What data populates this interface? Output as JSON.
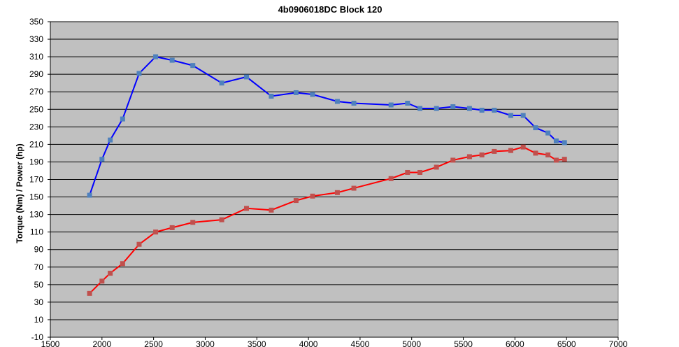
{
  "chart_data": {
    "type": "line",
    "title": "4b0906018DC  Block  120",
    "xlabel": "",
    "ylabel": "Torque (Nm) / Power (hp)",
    "xlim": [
      1500,
      7000
    ],
    "ylim": [
      -10,
      350
    ],
    "x_ticks": [
      "1500",
      "2000",
      "2500",
      "3000",
      "3500",
      "4000",
      "4500",
      "5000",
      "5500",
      "6000",
      "6500",
      "7000"
    ],
    "y_ticks": [
      "-10",
      "10",
      "30",
      "50",
      "70",
      "90",
      "110",
      "130",
      "150",
      "170",
      "190",
      "210",
      "230",
      "250",
      "270",
      "290",
      "310",
      "330",
      "350"
    ],
    "grid": true,
    "legend": "none",
    "plot_background": "#c0c0c0",
    "series": [
      {
        "color": "#0000ff",
        "marker_color": "#4f81bd",
        "x": [
          1880,
          2000,
          2080,
          2200,
          2360,
          2520,
          2680,
          2880,
          3160,
          3400,
          3640,
          3880,
          4040,
          4280,
          4440,
          4800,
          4960,
          5080,
          5240,
          5400,
          5560,
          5680,
          5800,
          5960,
          6080,
          6200,
          6320,
          6400,
          6480
        ],
        "y": [
          152,
          193,
          215,
          239,
          291,
          310,
          306,
          300,
          280,
          287,
          265,
          269,
          267,
          259,
          257,
          255,
          257,
          251,
          251,
          253,
          251,
          249,
          249,
          243,
          243,
          229,
          223,
          214,
          212
        ]
      },
      {
        "color": "#ff0000",
        "marker_color": "#c0504d",
        "x": [
          1880,
          2000,
          2080,
          2200,
          2360,
          2520,
          2680,
          2880,
          3160,
          3400,
          3640,
          3880,
          4040,
          4280,
          4440,
          4800,
          4960,
          5080,
          5240,
          5400,
          5560,
          5680,
          5800,
          5960,
          6080,
          6200,
          6320,
          6400,
          6480
        ],
        "y": [
          40,
          54,
          63,
          74,
          96,
          110,
          115,
          121,
          124,
          137,
          135,
          146,
          151,
          155,
          160,
          171,
          178,
          178,
          184,
          192,
          196,
          198,
          202,
          203,
          207,
          200,
          198,
          192,
          193
        ]
      }
    ]
  }
}
